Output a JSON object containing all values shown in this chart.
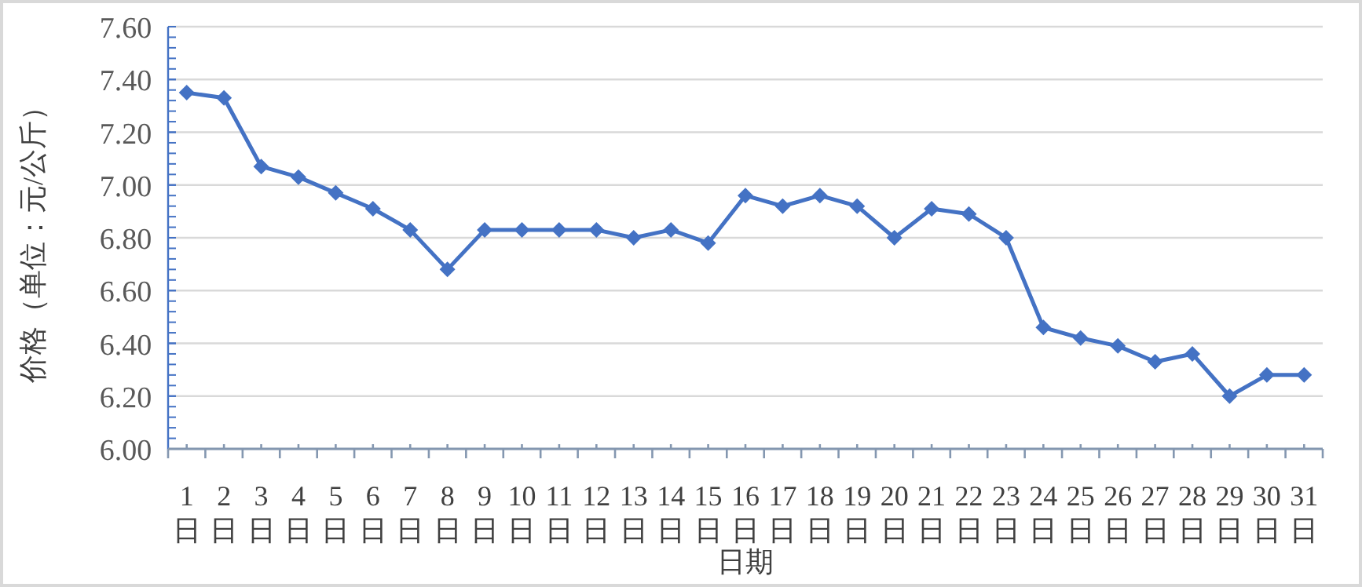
{
  "chart_data": {
    "type": "line",
    "xlabel": "日期",
    "ylabel": "价格（单位：元/公斤）",
    "categories": [
      "1日",
      "2日",
      "3日",
      "4日",
      "5日",
      "6日",
      "7日",
      "8日",
      "9日",
      "10日",
      "11日",
      "12日",
      "13日",
      "14日",
      "15日",
      "16日",
      "17日",
      "18日",
      "19日",
      "20日",
      "21日",
      "22日",
      "23日",
      "24日",
      "25日",
      "26日",
      "27日",
      "28日",
      "29日",
      "30日",
      "31日"
    ],
    "series": [
      {
        "color": "#4472c4",
        "values": [
          7.35,
          7.33,
          7.07,
          7.03,
          6.97,
          6.91,
          6.83,
          6.68,
          6.83,
          6.83,
          6.83,
          6.83,
          6.8,
          6.83,
          6.78,
          6.96,
          6.92,
          6.96,
          6.92,
          6.8,
          6.91,
          6.89,
          6.8,
          6.46,
          6.42,
          6.39,
          6.33,
          6.36,
          6.2,
          6.28,
          6.28
        ]
      }
    ],
    "ylim": [
      6.0,
      7.6
    ],
    "yticks": [
      {
        "value": 6.0,
        "label": "6.00"
      },
      {
        "value": 6.2,
        "label": "6.20"
      },
      {
        "value": 6.4,
        "label": "6.40"
      },
      {
        "value": 6.6,
        "label": "6.60"
      },
      {
        "value": 6.8,
        "label": "6.80"
      },
      {
        "value": 7.0,
        "label": "7.00"
      },
      {
        "value": 7.2,
        "label": "7.20"
      },
      {
        "value": 7.4,
        "label": "7.40"
      },
      {
        "value": 7.6,
        "label": "7.60"
      }
    ],
    "grid": "y",
    "marker": "diamond",
    "line_style": "solid"
  }
}
